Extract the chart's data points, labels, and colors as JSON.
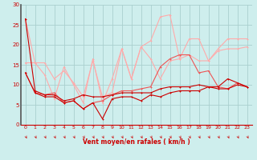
{
  "background_color": "#ceeeed",
  "grid_color": "#aacfcf",
  "xlabel": "Vent moyen/en rafales ( km/h )",
  "xlim": [
    -0.5,
    23.5
  ],
  "ylim": [
    0,
    30
  ],
  "xticks": [
    0,
    1,
    2,
    3,
    4,
    5,
    6,
    7,
    8,
    9,
    10,
    11,
    12,
    13,
    14,
    15,
    16,
    17,
    18,
    19,
    20,
    21,
    22,
    23
  ],
  "yticks": [
    0,
    5,
    10,
    15,
    20,
    25,
    30
  ],
  "line_dark1_x": [
    0,
    1,
    2,
    3,
    4,
    5,
    6,
    7,
    8,
    9,
    10,
    11,
    12,
    13,
    14,
    15,
    16,
    17,
    18,
    19,
    20,
    21,
    22,
    23
  ],
  "line_dark1_y": [
    26.5,
    8.5,
    7.5,
    7.5,
    6.0,
    6.5,
    7.5,
    7.0,
    7.0,
    7.5,
    8.0,
    8.0,
    8.0,
    8.0,
    9.0,
    9.5,
    9.5,
    9.5,
    10.0,
    9.5,
    9.5,
    11.5,
    10.5,
    9.5
  ],
  "line_dark2_x": [
    0,
    1,
    2,
    3,
    4,
    5,
    6,
    7,
    8,
    9,
    10,
    11,
    12,
    13,
    14,
    15,
    16,
    17,
    18,
    19,
    20,
    21,
    22,
    23
  ],
  "line_dark2_y": [
    13.0,
    8.0,
    7.0,
    7.0,
    5.5,
    6.0,
    4.0,
    5.5,
    1.5,
    6.5,
    7.0,
    7.0,
    6.0,
    7.5,
    7.0,
    8.0,
    8.5,
    8.5,
    8.5,
    9.5,
    9.0,
    9.0,
    10.0,
    9.5
  ],
  "line_light1_x": [
    0,
    1,
    2,
    3,
    4,
    5,
    6,
    7,
    8,
    9,
    10,
    11,
    12,
    13,
    14,
    15,
    16,
    17,
    18,
    19,
    20,
    21,
    22,
    23
  ],
  "line_light1_y": [
    15.5,
    15.5,
    15.5,
    11.5,
    13.5,
    10.5,
    7.0,
    16.0,
    7.0,
    8.0,
    19.0,
    11.5,
    19.5,
    16.5,
    11.5,
    16.0,
    16.5,
    21.5,
    21.5,
    16.0,
    18.5,
    19.0,
    19.0,
    19.5
  ],
  "line_light2_x": [
    0,
    1,
    2,
    3,
    4,
    5,
    6,
    7,
    8,
    9,
    10,
    11,
    12,
    13,
    14,
    15,
    16,
    17,
    18,
    19,
    20,
    21,
    22,
    23
  ],
  "line_light2_y": [
    26.5,
    15.5,
    12.5,
    6.5,
    14.5,
    10.0,
    5.5,
    16.5,
    5.5,
    11.5,
    19.0,
    11.5,
    19.5,
    21.0,
    27.0,
    27.5,
    16.5,
    17.5,
    16.0,
    16.0,
    19.0,
    21.5,
    21.5,
    21.5
  ],
  "line_med_x": [
    0,
    1,
    2,
    3,
    4,
    5,
    6,
    7,
    8,
    9,
    10,
    11,
    12,
    13,
    14,
    15,
    16,
    17,
    18,
    19,
    20,
    21,
    22,
    23
  ],
  "line_med_y": [
    13.0,
    8.0,
    7.5,
    8.0,
    5.5,
    6.0,
    4.0,
    5.5,
    6.0,
    7.5,
    8.5,
    8.5,
    9.0,
    9.5,
    14.5,
    16.5,
    17.5,
    17.5,
    13.0,
    13.5,
    9.5,
    9.0,
    10.5,
    9.5
  ],
  "color_dark_red": "#cc0000",
  "color_light_red": "#ffaaaa",
  "color_medium_red": "#ee5555"
}
